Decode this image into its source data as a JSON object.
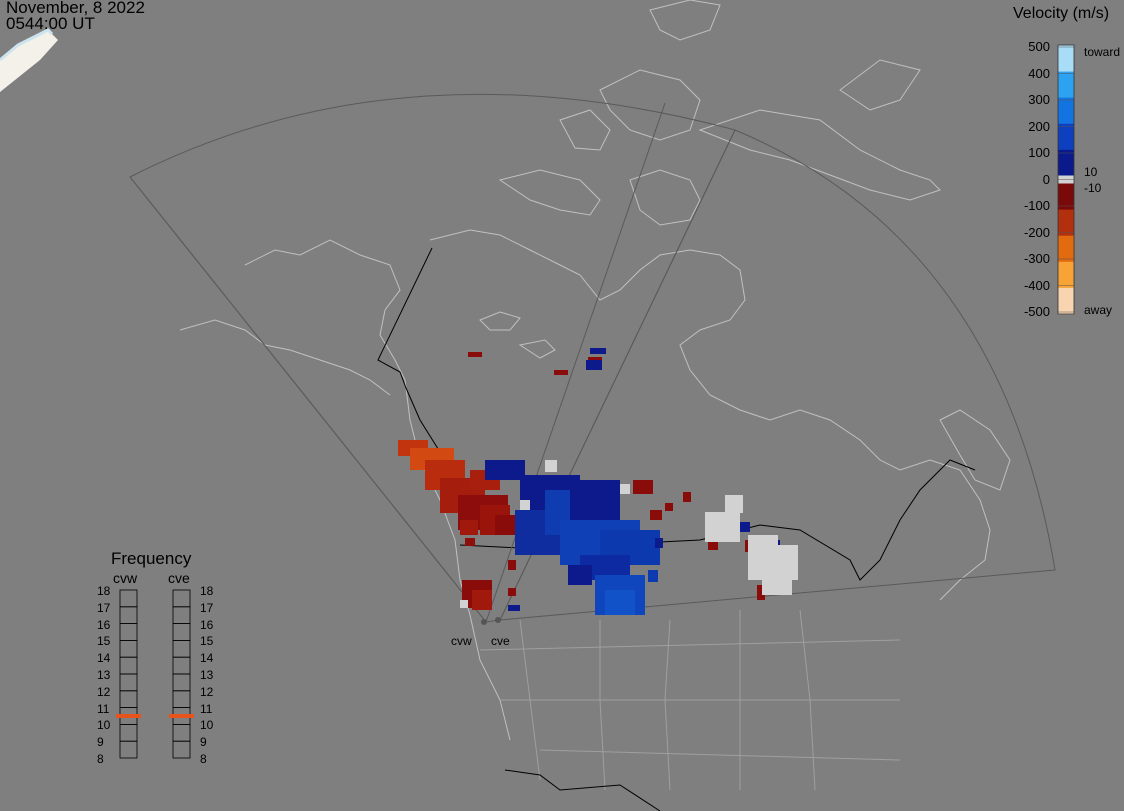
{
  "header": {
    "date": "November, 8 2022",
    "time": "0544:00 UT"
  },
  "colorbar": {
    "title": "Velocity (m/s)",
    "ticks": [
      "500",
      "400",
      "300",
      "200",
      "100",
      "0",
      "-100",
      "-200",
      "-300",
      "-400",
      "-500"
    ],
    "near_zero_labels": [
      "10",
      "-10"
    ],
    "toward_label": "toward",
    "away_label": "away",
    "toward_colors": [
      "#0a1a8a",
      "#0d3fbf",
      "#1373e0",
      "#2ca2f0",
      "#a9dcf7"
    ],
    "away_colors": [
      "#7a0a0a",
      "#b3300f",
      "#e26a0f",
      "#f7a335",
      "#f8d4b0"
    ],
    "ground_scatter_color": "#d2d2d2"
  },
  "frequency": {
    "title": "Frequency",
    "radars": [
      {
        "code": "cvw",
        "active_mhz": 10.5
      },
      {
        "code": "cve",
        "active_mhz": 10.5
      }
    ],
    "scale": [
      "18",
      "17",
      "16",
      "15",
      "14",
      "13",
      "12",
      "11",
      "10",
      "9",
      "8"
    ],
    "indicator_color": "#e8531c"
  },
  "radars": [
    {
      "code": "cvw"
    },
    {
      "code": "cve"
    }
  ]
}
